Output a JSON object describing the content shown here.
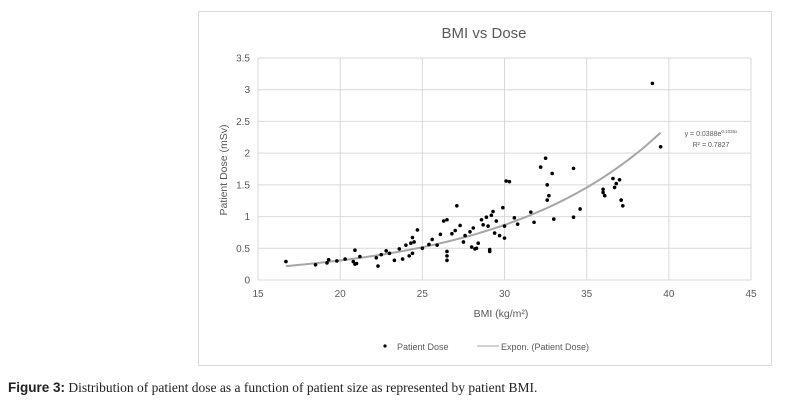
{
  "caption": {
    "label": "Figure 3:",
    "text": " Distribution of patient dose as a function of patient size as represented by patient BMI."
  },
  "chart_data": {
    "type": "scatter",
    "title": "BMI vs Dose",
    "xlabel": "BMI (kg/m²)",
    "ylabel": "Patient Dose (mSv)",
    "xlim": [
      15,
      45
    ],
    "ylim": [
      0,
      3.5
    ],
    "xticks": [
      15,
      20,
      25,
      30,
      35,
      40,
      45
    ],
    "yticks": [
      0,
      0.5,
      1,
      1.5,
      2,
      2.5,
      3,
      3.5
    ],
    "ytick_labels": [
      "0",
      "0.5",
      "1",
      "1.5",
      "2",
      "2.5",
      "3",
      "3.5"
    ],
    "grid": true,
    "legend": {
      "position": "bottom",
      "entries": [
        "Patient Dose",
        "Expon. (Patient Dose)"
      ]
    },
    "colors": {
      "points": "#000000",
      "trendline": "#a6a6a6",
      "grid": "#d9d9d9",
      "text": "#595959"
    },
    "trendline": {
      "type": "exponential",
      "a": 0.0388,
      "b_estimated": 0.1036,
      "x_range": [
        16.7,
        39.5
      ],
      "equation_label": "y = 0.0388e",
      "equation_exponent_label": "0.1036x",
      "r2_label": "R² = 0.7827"
    },
    "series": [
      {
        "name": "Patient Dose",
        "points": [
          [
            16.7,
            0.29
          ],
          [
            18.5,
            0.24
          ],
          [
            19.2,
            0.27
          ],
          [
            19.3,
            0.32
          ],
          [
            19.8,
            0.3
          ],
          [
            20.3,
            0.33
          ],
          [
            20.8,
            0.29
          ],
          [
            20.9,
            0.47
          ],
          [
            20.9,
            0.25
          ],
          [
            21.0,
            0.26
          ],
          [
            21.2,
            0.37
          ],
          [
            22.2,
            0.35
          ],
          [
            22.3,
            0.22
          ],
          [
            22.5,
            0.4
          ],
          [
            22.8,
            0.46
          ],
          [
            23.0,
            0.42
          ],
          [
            23.3,
            0.31
          ],
          [
            23.6,
            0.49
          ],
          [
            23.8,
            0.33
          ],
          [
            24.0,
            0.55
          ],
          [
            24.2,
            0.38
          ],
          [
            24.3,
            0.58
          ],
          [
            24.4,
            0.42
          ],
          [
            24.4,
            0.67
          ],
          [
            24.5,
            0.6
          ],
          [
            24.7,
            0.79
          ],
          [
            25.0,
            0.5
          ],
          [
            25.4,
            0.56
          ],
          [
            25.6,
            0.64
          ],
          [
            25.9,
            0.55
          ],
          [
            26.1,
            0.72
          ],
          [
            26.3,
            0.93
          ],
          [
            26.5,
            0.95
          ],
          [
            26.5,
            0.45
          ],
          [
            26.5,
            0.38
          ],
          [
            26.5,
            0.31
          ],
          [
            26.8,
            0.73
          ],
          [
            27.0,
            0.78
          ],
          [
            27.1,
            1.17
          ],
          [
            27.3,
            0.86
          ],
          [
            27.5,
            0.6
          ],
          [
            27.6,
            0.7
          ],
          [
            27.9,
            0.76
          ],
          [
            28.0,
            0.52
          ],
          [
            28.1,
            0.82
          ],
          [
            28.2,
            0.49
          ],
          [
            28.3,
            0.5
          ],
          [
            28.4,
            0.58
          ],
          [
            28.6,
            0.95
          ],
          [
            28.7,
            0.87
          ],
          [
            28.9,
            0.99
          ],
          [
            29.0,
            0.85
          ],
          [
            29.1,
            0.45
          ],
          [
            29.1,
            0.48
          ],
          [
            29.2,
            1.02
          ],
          [
            29.3,
            1.08
          ],
          [
            29.4,
            0.74
          ],
          [
            29.5,
            0.93
          ],
          [
            29.7,
            0.7
          ],
          [
            29.9,
            1.14
          ],
          [
            30.0,
            0.85
          ],
          [
            30.0,
            0.66
          ],
          [
            30.1,
            1.56
          ],
          [
            30.3,
            1.55
          ],
          [
            30.6,
            0.98
          ],
          [
            30.8,
            0.88
          ],
          [
            31.6,
            1.07
          ],
          [
            31.8,
            0.91
          ],
          [
            32.2,
            1.78
          ],
          [
            32.5,
            1.92
          ],
          [
            32.6,
            1.5
          ],
          [
            32.6,
            1.26
          ],
          [
            32.7,
            1.33
          ],
          [
            32.9,
            1.68
          ],
          [
            33.0,
            0.96
          ],
          [
            34.2,
            1.76
          ],
          [
            34.2,
            0.99
          ],
          [
            34.6,
            1.12
          ],
          [
            36.0,
            1.38
          ],
          [
            36.0,
            1.43
          ],
          [
            36.1,
            1.33
          ],
          [
            36.6,
            1.6
          ],
          [
            36.7,
            1.46
          ],
          [
            36.8,
            1.52
          ],
          [
            37.0,
            1.58
          ],
          [
            37.1,
            1.26
          ],
          [
            37.2,
            1.17
          ],
          [
            39.0,
            3.1
          ],
          [
            39.5,
            2.1
          ]
        ]
      }
    ]
  }
}
